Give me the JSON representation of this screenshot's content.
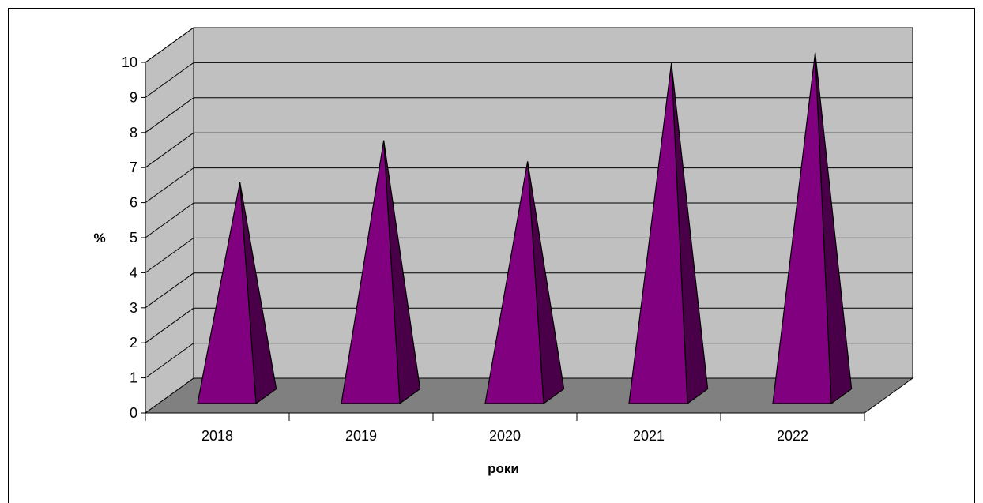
{
  "chart_data": {
    "type": "bar",
    "bar_shape": "3d-pyramid",
    "categories": [
      "2018",
      "2019",
      "2020",
      "2021",
      "2022"
    ],
    "values": [
      6.2,
      7.4,
      6.8,
      9.6,
      9.9
    ],
    "title": "",
    "xlabel": "роки",
    "ylabel": "%",
    "ylim": [
      0,
      10
    ],
    "yticks": [
      0,
      1,
      2,
      3,
      4,
      5,
      6,
      7,
      8,
      9,
      10
    ],
    "grid": true,
    "legend": "none",
    "colors": {
      "bar_front": "#800080",
      "bar_side": "#4a0048",
      "back_wall": "#c0c0c0",
      "floor": "#808080"
    }
  }
}
